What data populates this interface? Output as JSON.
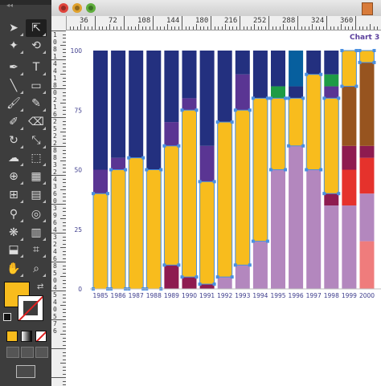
{
  "window": {
    "traffic_lights": [
      {
        "name": "close",
        "color": "#e0443c"
      },
      {
        "name": "minimize",
        "color": "#e0a12c"
      },
      {
        "name": "zoom",
        "color": "#5fae3c"
      }
    ]
  },
  "ruler": {
    "horizontal_labels": [
      "36",
      "72",
      "108",
      "144",
      "180",
      "216",
      "252",
      "288",
      "324",
      "360"
    ],
    "vertical_labels": [
      "1",
      "0",
      "8",
      "1",
      "4",
      "4",
      "1",
      "8",
      "0",
      "2",
      "1",
      "6",
      "2",
      "5",
      "2",
      "2",
      "8",
      "8",
      "3",
      "2",
      "4",
      "3",
      "6",
      "0",
      "3",
      "9",
      "6",
      "4",
      "3",
      "2",
      "4",
      "6",
      "8",
      "5",
      "0",
      "4",
      "5",
      "4",
      "0",
      "5",
      "7",
      "6"
    ]
  },
  "tools": [
    {
      "name": "selection-tool-icon",
      "glyph": "➤"
    },
    {
      "name": "direct-selection-tool-icon",
      "glyph": "⇱"
    },
    {
      "name": "magic-wand-tool-icon",
      "glyph": "✦"
    },
    {
      "name": "lasso-tool-icon",
      "glyph": "⟲"
    },
    {
      "name": "pen-tool-icon",
      "glyph": "✒"
    },
    {
      "name": "type-tool-icon",
      "glyph": "T"
    },
    {
      "name": "line-segment-tool-icon",
      "glyph": "╲"
    },
    {
      "name": "rectangle-tool-icon",
      "glyph": "▭"
    },
    {
      "name": "paintbrush-tool-icon",
      "glyph": "🖌"
    },
    {
      "name": "pencil-tool-icon",
      "glyph": "✎"
    },
    {
      "name": "blob-brush-tool-icon",
      "glyph": "✐"
    },
    {
      "name": "eraser-tool-icon",
      "glyph": "⌫"
    },
    {
      "name": "rotate-tool-icon",
      "glyph": "↻"
    },
    {
      "name": "scale-tool-icon",
      "glyph": "⤡"
    },
    {
      "name": "warp-tool-icon",
      "glyph": "☁"
    },
    {
      "name": "free-transform-tool-icon",
      "glyph": "⬚"
    },
    {
      "name": "shape-builder-tool-icon",
      "glyph": "⊕"
    },
    {
      "name": "perspective-grid-tool-icon",
      "glyph": "▦"
    },
    {
      "name": "mesh-tool-icon",
      "glyph": "⊞"
    },
    {
      "name": "gradient-tool-icon",
      "glyph": "▤"
    },
    {
      "name": "eyedropper-tool-icon",
      "glyph": "⚲"
    },
    {
      "name": "blend-tool-icon",
      "glyph": "◎"
    },
    {
      "name": "symbol-sprayer-tool-icon",
      "glyph": "❋"
    },
    {
      "name": "column-graph-tool-icon",
      "glyph": "▥"
    },
    {
      "name": "artboard-tool-icon",
      "glyph": "⬓"
    },
    {
      "name": "slice-tool-icon",
      "glyph": "⌗"
    },
    {
      "name": "hand-tool-icon",
      "glyph": "✋"
    },
    {
      "name": "zoom-tool-icon",
      "glyph": "⌕"
    }
  ],
  "colors": {
    "fill": "#f8bc1d",
    "navy": "#23307f",
    "purple": "#5a3593",
    "maroon": "#8e1b50",
    "yellow": "#f8bc1d",
    "lavender": "#b387be",
    "green": "#1e9b45",
    "teal": "#075f9e",
    "brown": "#97541f",
    "red": "#e5322c",
    "salmon": "#ef7c7c",
    "selection": "#4a8fe0",
    "axis_label": "#3d3c8c"
  },
  "chart_data": {
    "type": "bar",
    "title": "Chart 3",
    "stacked": true,
    "ylim": [
      0,
      100
    ],
    "yticks": [
      0,
      25,
      50,
      75,
      100
    ],
    "categories": [
      "1985",
      "1986",
      "1987",
      "1988",
      "1989",
      "1990",
      "1991",
      "1992",
      "1993",
      "1994",
      "1995",
      "1996",
      "1997",
      "1998",
      "1999",
      "2000"
    ],
    "segments": [
      [
        [
          "yellow",
          40
        ],
        [
          "purple",
          10
        ],
        [
          "navy",
          50
        ]
      ],
      [
        [
          "yellow",
          50
        ],
        [
          "purple",
          5
        ],
        [
          "navy",
          45
        ]
      ],
      [
        [
          "yellow",
          55
        ],
        [
          "navy",
          45
        ]
      ],
      [
        [
          "yellow",
          50
        ],
        [
          "navy",
          50
        ]
      ],
      [
        [
          "maroon",
          10
        ],
        [
          "yellow",
          50
        ],
        [
          "purple",
          10
        ],
        [
          "navy",
          30
        ]
      ],
      [
        [
          "maroon",
          5
        ],
        [
          "yellow",
          70
        ],
        [
          "purple",
          5
        ],
        [
          "navy",
          20
        ]
      ],
      [
        [
          "maroon",
          2
        ],
        [
          "yellow",
          43
        ],
        [
          "purple",
          15
        ],
        [
          "navy",
          40
        ]
      ],
      [
        [
          "lavender",
          5
        ],
        [
          "yellow",
          65
        ],
        [
          "navy",
          30
        ]
      ],
      [
        [
          "lavender",
          10
        ],
        [
          "yellow",
          65
        ],
        [
          "purple",
          15
        ],
        [
          "navy",
          10
        ]
      ],
      [
        [
          "lavender",
          20
        ],
        [
          "yellow",
          60
        ],
        [
          "navy",
          20
        ]
      ],
      [
        [
          "lavender",
          50
        ],
        [
          "yellow",
          30
        ],
        [
          "green",
          5
        ],
        [
          "navy",
          15
        ]
      ],
      [
        [
          "lavender",
          60
        ],
        [
          "yellow",
          20
        ],
        [
          "navy",
          5
        ],
        [
          "teal",
          15
        ]
      ],
      [
        [
          "lavender",
          50
        ],
        [
          "yellow",
          40
        ],
        [
          "navy",
          10
        ]
      ],
      [
        [
          "lavender",
          35
        ],
        [
          "maroon",
          5
        ],
        [
          "yellow",
          40
        ],
        [
          "purple",
          5
        ],
        [
          "green",
          5
        ],
        [
          "navy",
          10
        ]
      ],
      [
        [
          "lavender",
          35
        ],
        [
          "red",
          15
        ],
        [
          "maroon",
          10
        ],
        [
          "brown",
          25
        ],
        [
          "yellow",
          15
        ]
      ],
      [
        [
          "salmon",
          20
        ],
        [
          "lavender",
          20
        ],
        [
          "red",
          15
        ],
        [
          "maroon",
          5
        ],
        [
          "brown",
          35
        ],
        [
          "yellow",
          5
        ]
      ]
    ],
    "selected_bars": [
      0,
      1,
      2,
      3,
      4,
      5,
      6,
      7,
      8,
      9,
      10,
      11,
      12,
      13,
      14,
      15
    ]
  }
}
